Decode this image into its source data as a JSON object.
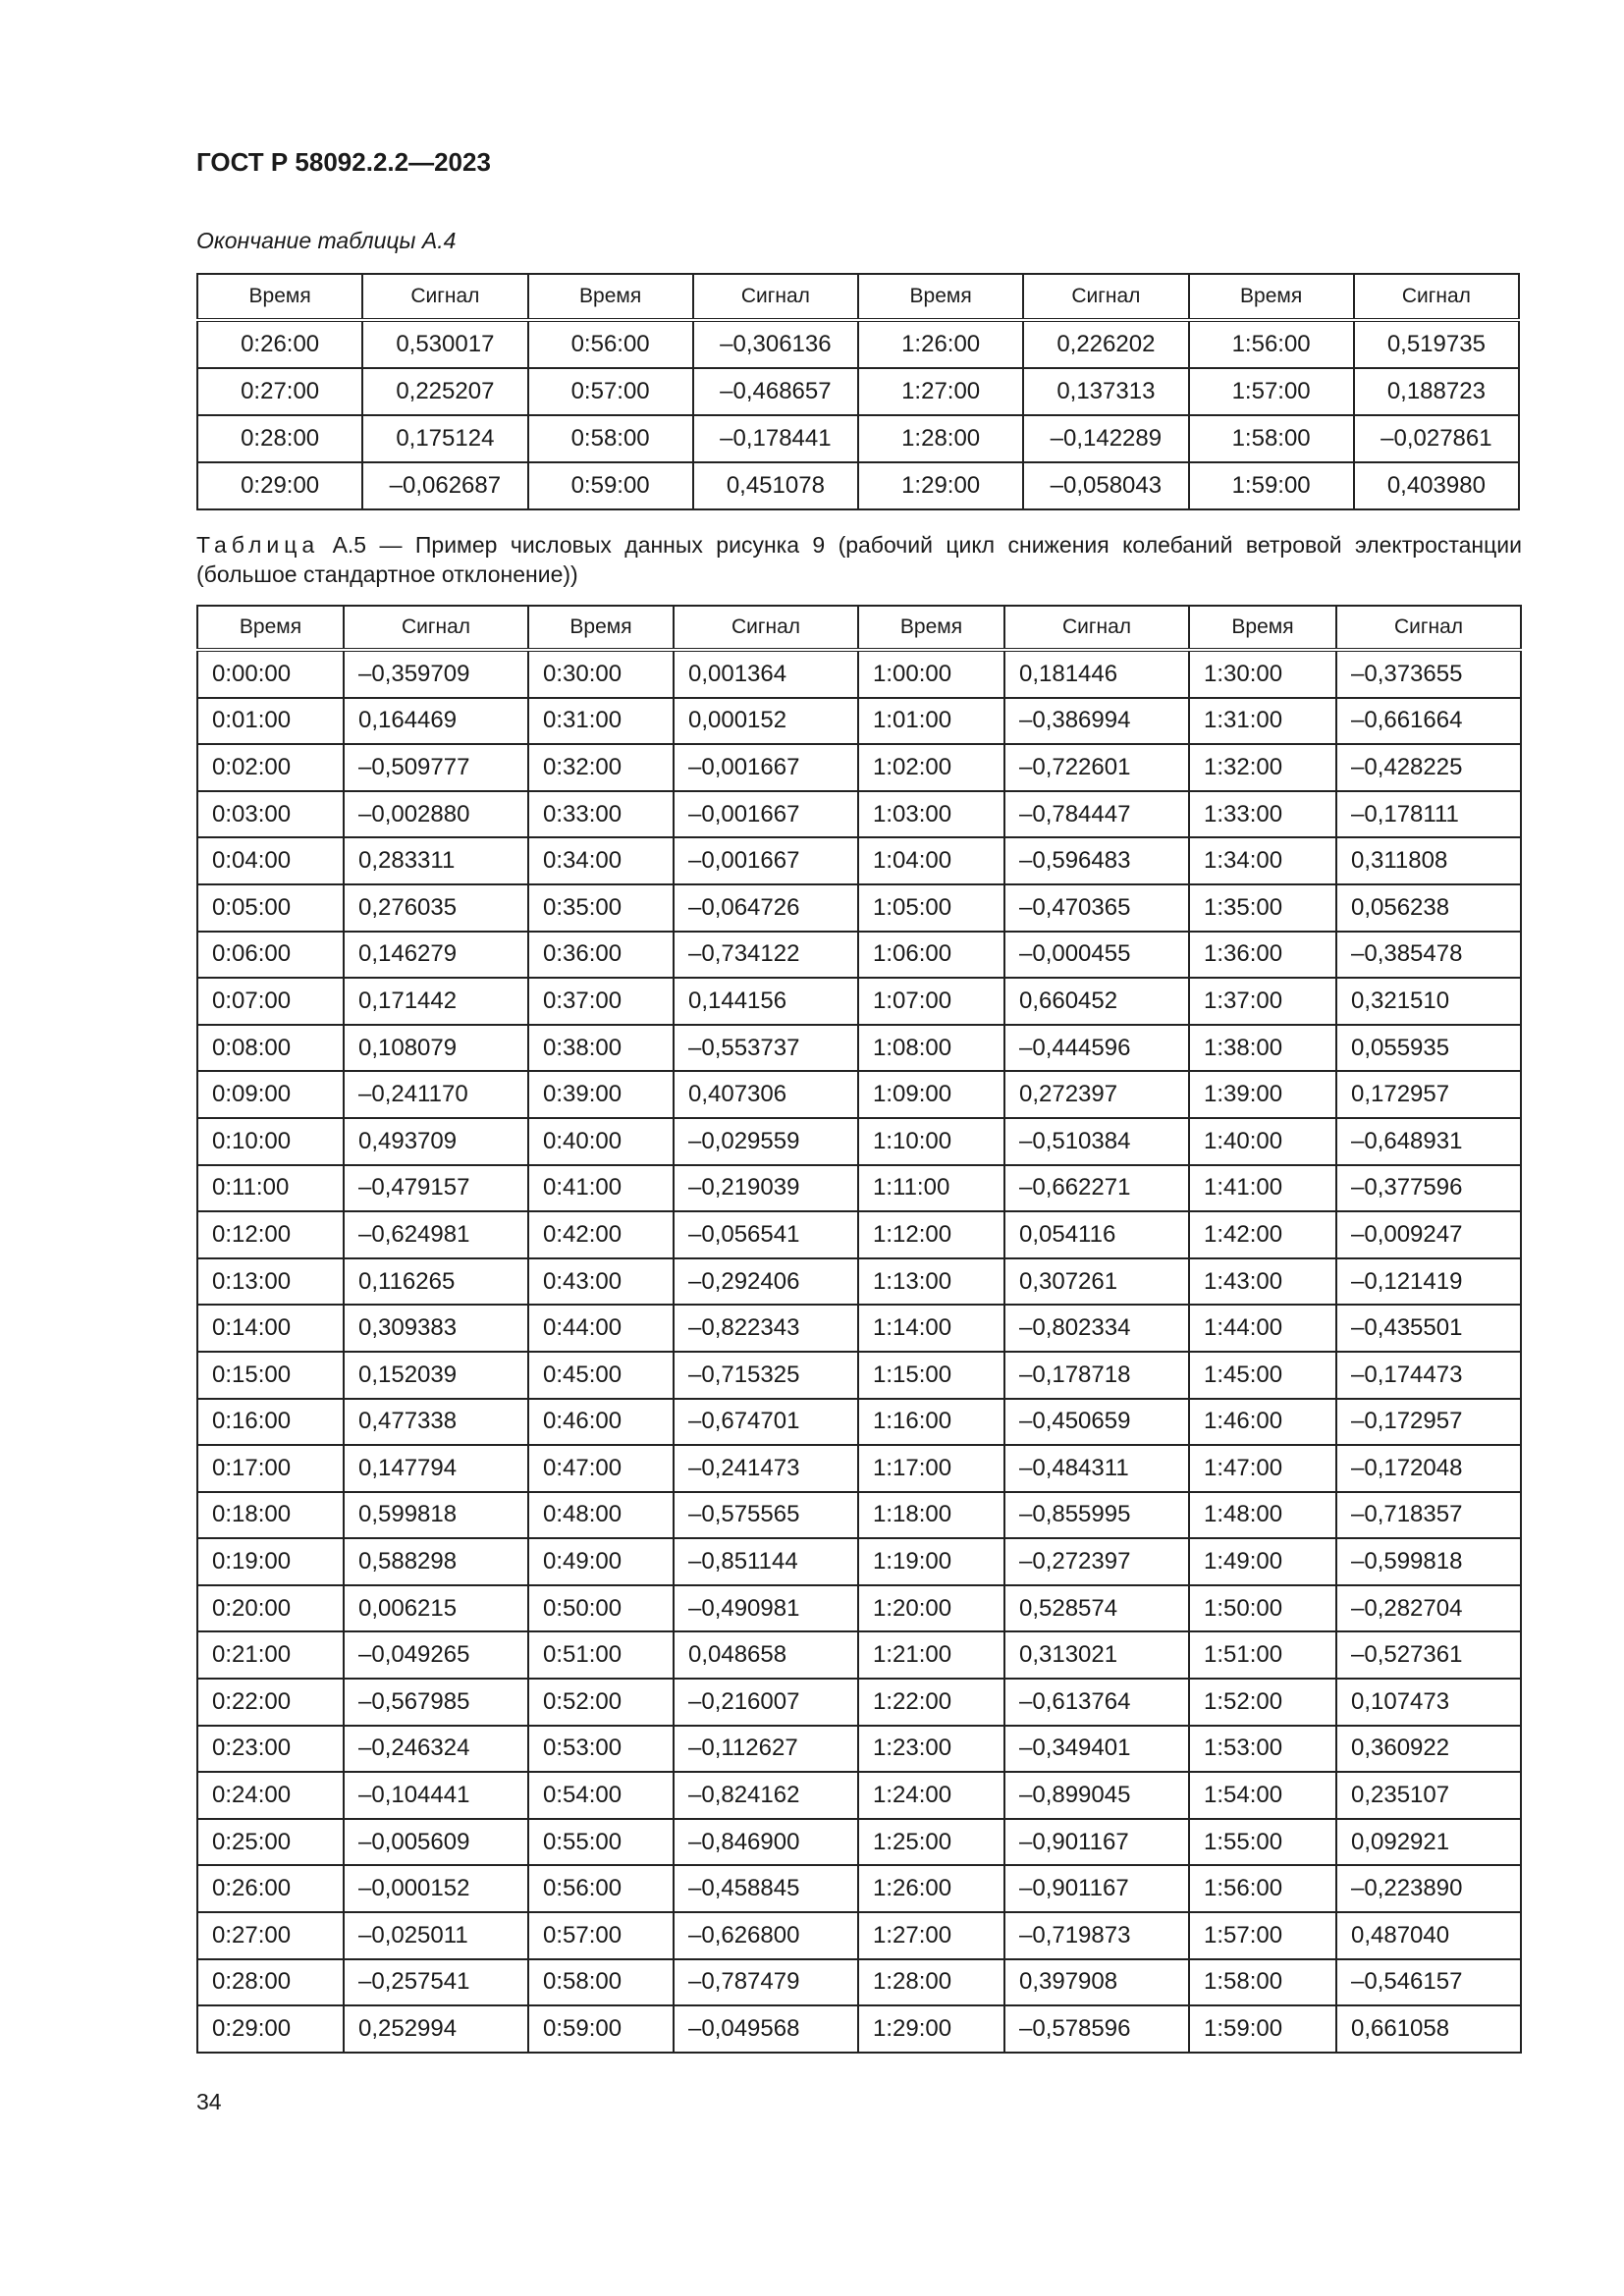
{
  "header": {
    "doc_number": "ГОСТ Р 58092.2.2—2023"
  },
  "table_a4": {
    "caption": "Окончание таблицы А.4",
    "columns": [
      "Время",
      "Сигнал",
      "Время",
      "Сигнал",
      "Время",
      "Сигнал",
      "Время",
      "Сигнал"
    ],
    "rows": [
      [
        "0:26:00",
        "0,530017",
        "0:56:00",
        "–0,306136",
        "1:26:00",
        "0,226202",
        "1:56:00",
        "0,519735"
      ],
      [
        "0:27:00",
        "0,225207",
        "0:57:00",
        "–0,468657",
        "1:27:00",
        "0,137313",
        "1:57:00",
        "0,188723"
      ],
      [
        "0:28:00",
        "0,175124",
        "0:58:00",
        "–0,178441",
        "1:28:00",
        "–0,142289",
        "1:58:00",
        "–0,027861"
      ],
      [
        "0:29:00",
        "–0,062687",
        "0:59:00",
        "0,451078",
        "1:29:00",
        "–0,058043",
        "1:59:00",
        "0,403980"
      ]
    ]
  },
  "table_a5": {
    "caption_label": "Таблица",
    "caption_text": "А.5 — Пример числовых данных рисунка 9 (рабочий цикл снижения колебаний ветровой электростанции (большое стандартное отклонение))",
    "columns": [
      "Время",
      "Сигнал",
      "Время",
      "Сигнал",
      "Время",
      "Сигнал",
      "Время",
      "Сигнал"
    ],
    "rows": [
      [
        "0:00:00",
        "–0,359709",
        "0:30:00",
        "0,001364",
        "1:00:00",
        "0,181446",
        "1:30:00",
        "–0,373655"
      ],
      [
        "0:01:00",
        "0,164469",
        "0:31:00",
        "0,000152",
        "1:01:00",
        "–0,386994",
        "1:31:00",
        "–0,661664"
      ],
      [
        "0:02:00",
        "–0,509777",
        "0:32:00",
        "–0,001667",
        "1:02:00",
        "–0,722601",
        "1:32:00",
        "–0,428225"
      ],
      [
        "0:03:00",
        "–0,002880",
        "0:33:00",
        "–0,001667",
        "1:03:00",
        "–0,784447",
        "1:33:00",
        "–0,178111"
      ],
      [
        "0:04:00",
        "0,283311",
        "0:34:00",
        "–0,001667",
        "1:04:00",
        "–0,596483",
        "1:34:00",
        "0,311808"
      ],
      [
        "0:05:00",
        "0,276035",
        "0:35:00",
        "–0,064726",
        "1:05:00",
        "–0,470365",
        "1:35:00",
        "0,056238"
      ],
      [
        "0:06:00",
        "0,146279",
        "0:36:00",
        "–0,734122",
        "1:06:00",
        "–0,000455",
        "1:36:00",
        "–0,385478"
      ],
      [
        "0:07:00",
        "0,171442",
        "0:37:00",
        "0,144156",
        "1:07:00",
        "0,660452",
        "1:37:00",
        "0,321510"
      ],
      [
        "0:08:00",
        "0,108079",
        "0:38:00",
        "–0,553737",
        "1:08:00",
        "–0,444596",
        "1:38:00",
        "0,055935"
      ],
      [
        "0:09:00",
        "–0,241170",
        "0:39:00",
        "0,407306",
        "1:09:00",
        "0,272397",
        "1:39:00",
        "0,172957"
      ],
      [
        "0:10:00",
        "0,493709",
        "0:40:00",
        "–0,029559",
        "1:10:00",
        "–0,510384",
        "1:40:00",
        "–0,648931"
      ],
      [
        "0:11:00",
        "–0,479157",
        "0:41:00",
        "–0,219039",
        "1:11:00",
        "–0,662271",
        "1:41:00",
        "–0,377596"
      ],
      [
        "0:12:00",
        "–0,624981",
        "0:42:00",
        "–0,056541",
        "1:12:00",
        "0,054116",
        "1:42:00",
        "–0,009247"
      ],
      [
        "0:13:00",
        "0,116265",
        "0:43:00",
        "–0,292406",
        "1:13:00",
        "0,307261",
        "1:43:00",
        "–0,121419"
      ],
      [
        "0:14:00",
        "0,309383",
        "0:44:00",
        "–0,822343",
        "1:14:00",
        "–0,802334",
        "1:44:00",
        "–0,435501"
      ],
      [
        "0:15:00",
        "0,152039",
        "0:45:00",
        "–0,715325",
        "1:15:00",
        "–0,178718",
        "1:45:00",
        "–0,174473"
      ],
      [
        "0:16:00",
        "0,477338",
        "0:46:00",
        "–0,674701",
        "1:16:00",
        "–0,450659",
        "1:46:00",
        "–0,172957"
      ],
      [
        "0:17:00",
        "0,147794",
        "0:47:00",
        "–0,241473",
        "1:17:00",
        "–0,484311",
        "1:47:00",
        "–0,172048"
      ],
      [
        "0:18:00",
        "0,599818",
        "0:48:00",
        "–0,575565",
        "1:18:00",
        "–0,855995",
        "1:48:00",
        "–0,718357"
      ],
      [
        "0:19:00",
        "0,588298",
        "0:49:00",
        "–0,851144",
        "1:19:00",
        "–0,272397",
        "1:49:00",
        "–0,599818"
      ],
      [
        "0:20:00",
        "0,006215",
        "0:50:00",
        "–0,490981",
        "1:20:00",
        "0,528574",
        "1:50:00",
        "–0,282704"
      ],
      [
        "0:21:00",
        "–0,049265",
        "0:51:00",
        "0,048658",
        "1:21:00",
        "0,313021",
        "1:51:00",
        "–0,527361"
      ],
      [
        "0:22:00",
        "–0,567985",
        "0:52:00",
        "–0,216007",
        "1:22:00",
        "–0,613764",
        "1:52:00",
        "0,107473"
      ],
      [
        "0:23:00",
        "–0,246324",
        "0:53:00",
        "–0,112627",
        "1:23:00",
        "–0,349401",
        "1:53:00",
        "0,360922"
      ],
      [
        "0:24:00",
        "–0,104441",
        "0:54:00",
        "–0,824162",
        "1:24:00",
        "–0,899045",
        "1:54:00",
        "0,235107"
      ],
      [
        "0:25:00",
        "–0,005609",
        "0:55:00",
        "–0,846900",
        "1:25:00",
        "–0,901167",
        "1:55:00",
        "0,092921"
      ],
      [
        "0:26:00",
        "–0,000152",
        "0:56:00",
        "–0,458845",
        "1:26:00",
        "–0,901167",
        "1:56:00",
        "–0,223890"
      ],
      [
        "0:27:00",
        "–0,025011",
        "0:57:00",
        "–0,626800",
        "1:27:00",
        "–0,719873",
        "1:57:00",
        "0,487040"
      ],
      [
        "0:28:00",
        "–0,257541",
        "0:58:00",
        "–0,787479",
        "1:28:00",
        "0,397908",
        "1:58:00",
        "–0,546157"
      ],
      [
        "0:29:00",
        "0,252994",
        "0:59:00",
        "–0,049568",
        "1:29:00",
        "–0,578596",
        "1:59:00",
        "0,661058"
      ]
    ]
  },
  "footer": {
    "page_number": "34"
  }
}
